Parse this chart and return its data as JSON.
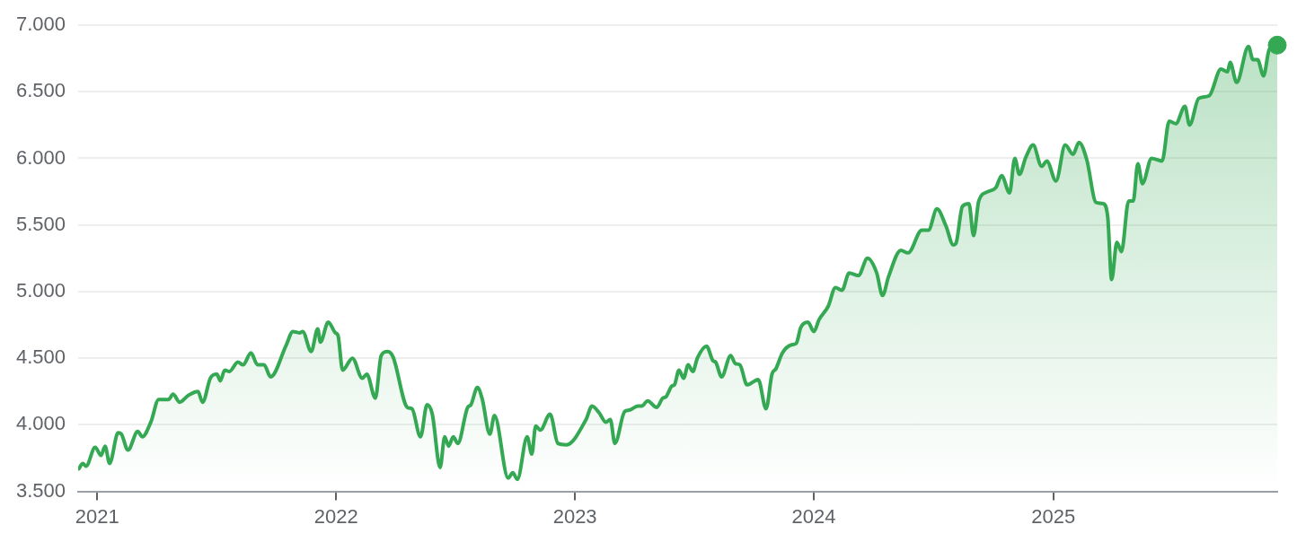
{
  "chart_data": {
    "type": "area",
    "grid": "y",
    "xlim": [
      "2020-12-03",
      "2025-12-09"
    ],
    "xticks": [
      {
        "value": "2021",
        "label": "2021"
      },
      {
        "value": "2022",
        "label": "2022"
      },
      {
        "value": "2023",
        "label": "2023"
      },
      {
        "value": "2024",
        "label": "2024"
      },
      {
        "value": "2025",
        "label": "2025"
      }
    ],
    "ylim": [
      3500,
      7000
    ],
    "yticks": [
      {
        "value": 3500,
        "label": "3.500"
      },
      {
        "value": 4000,
        "label": "4.000"
      },
      {
        "value": 4500,
        "label": "4.500"
      },
      {
        "value": 5000,
        "label": "5.000"
      },
      {
        "value": 5500,
        "label": "5.500"
      },
      {
        "value": 6000,
        "label": "6.000"
      },
      {
        "value": 6500,
        "label": "6.500"
      },
      {
        "value": 7000,
        "label": "7.000"
      }
    ],
    "series": [
      {
        "type": "area",
        "color": "#34a853",
        "x": [
          "2020-12-04",
          "2020-12-10",
          "2020-12-15",
          "2020-12-29",
          "2021-01-07",
          "2021-01-13",
          "2021-01-20",
          "2021-02-02",
          "2021-02-07",
          "2021-02-17",
          "2021-03-04",
          "2021-03-11",
          "2021-03-24",
          "2021-04-05",
          "2021-04-20",
          "2021-04-27",
          "2021-05-07",
          "2021-05-20",
          "2021-06-04",
          "2021-06-11",
          "2021-06-23",
          "2021-07-03",
          "2021-07-08",
          "2021-07-15",
          "2021-07-22",
          "2021-08-04",
          "2021-08-12",
          "2021-08-24",
          "2021-09-03",
          "2021-09-13",
          "2021-09-23",
          "2021-10-17",
          "2021-10-27",
          "2021-11-06",
          "2021-11-11",
          "2021-11-24",
          "2021-12-04",
          "2021-12-08",
          "2021-12-20",
          "2021-12-31",
          "2022-01-04",
          "2022-01-11",
          "2022-01-26",
          "2022-02-10",
          "2022-02-17",
          "2022-03-02",
          "2022-03-11",
          "2022-03-21",
          "2022-03-29",
          "2022-04-20",
          "2022-04-27",
          "2022-05-10",
          "2022-05-20",
          "2022-05-28",
          "2022-06-09",
          "2022-06-16",
          "2022-06-22",
          "2022-06-29",
          "2022-07-06",
          "2022-07-21",
          "2022-07-26",
          "2022-08-05",
          "2022-08-12",
          "2022-08-24",
          "2022-08-31",
          "2022-09-21",
          "2022-09-28",
          "2022-10-05",
          "2022-10-20",
          "2022-10-27",
          "2022-11-02",
          "2022-11-09",
          "2022-11-24",
          "2022-12-06",
          "2022-12-19",
          "2023-01-18",
          "2023-01-27",
          "2023-02-07",
          "2023-02-17",
          "2023-02-24",
          "2023-03-03",
          "2023-03-18",
          "2023-03-25",
          "2023-04-07",
          "2023-04-13",
          "2023-04-22",
          "2023-05-06",
          "2023-05-15",
          "2023-05-20",
          "2023-05-29",
          "2023-06-02",
          "2023-06-09",
          "2023-06-16",
          "2023-06-23",
          "2023-06-30",
          "2023-07-07",
          "2023-07-21",
          "2023-07-31",
          "2023-08-04",
          "2023-08-13",
          "2023-08-27",
          "2023-09-03",
          "2023-09-10",
          "2023-09-21",
          "2023-10-08",
          "2023-10-20",
          "2023-10-29",
          "2023-11-04",
          "2023-11-14",
          "2023-11-28",
          "2023-12-05",
          "2023-12-12",
          "2023-12-23",
          "2024-01-01",
          "2024-01-09",
          "2024-01-23",
          "2024-02-03",
          "2024-02-13",
          "2024-02-24",
          "2024-03-09",
          "2024-03-23",
          "2024-04-06",
          "2024-04-15",
          "2024-04-24",
          "2024-05-13",
          "2024-05-24",
          "2024-06-14",
          "2024-06-24",
          "2024-07-07",
          "2024-07-21",
          "2024-08-01",
          "2024-08-05",
          "2024-08-15",
          "2024-08-25",
          "2024-09-01",
          "2024-09-09",
          "2024-09-23",
          "2024-10-05",
          "2024-10-14",
          "2024-10-26",
          "2024-11-03",
          "2024-11-10",
          "2024-11-20",
          "2024-12-01",
          "2024-12-14",
          "2024-12-22",
          "2025-01-05",
          "2025-01-19",
          "2025-01-31",
          "2025-02-09",
          "2025-02-21",
          "2025-03-07",
          "2025-03-18",
          "2025-03-25",
          "2025-03-31",
          "2025-04-08",
          "2025-04-15",
          "2025-04-26",
          "2025-05-03",
          "2025-05-10",
          "2025-05-17",
          "2025-05-31",
          "2025-06-16",
          "2025-06-27",
          "2025-07-07",
          "2025-07-21",
          "2025-07-28",
          "2025-08-11",
          "2025-08-27",
          "2025-09-14",
          "2025-09-24",
          "2025-09-28",
          "2025-10-08",
          "2025-10-26",
          "2025-11-02",
          "2025-11-09",
          "2025-11-18",
          "2025-11-27",
          "2025-12-09"
        ],
        "values": [
          3670,
          3710,
          3690,
          3830,
          3770,
          3840,
          3710,
          3940,
          3930,
          3810,
          3950,
          3910,
          4020,
          4190,
          4190,
          4230,
          4170,
          4220,
          4250,
          4170,
          4350,
          4380,
          4330,
          4410,
          4400,
          4470,
          4450,
          4540,
          4450,
          4450,
          4360,
          4600,
          4700,
          4690,
          4700,
          4550,
          4720,
          4620,
          4770,
          4690,
          4670,
          4410,
          4500,
          4350,
          4380,
          4200,
          4520,
          4550,
          4510,
          4130,
          4120,
          3910,
          4150,
          4080,
          3680,
          3910,
          3840,
          3910,
          3860,
          4130,
          4150,
          4280,
          4200,
          3930,
          4070,
          3600,
          3640,
          3590,
          3910,
          3780,
          3990,
          3960,
          4080,
          3860,
          3850,
          4040,
          4140,
          4090,
          4020,
          4040,
          3860,
          4100,
          4110,
          4140,
          4140,
          4180,
          4130,
          4200,
          4210,
          4290,
          4300,
          4410,
          4350,
          4450,
          4400,
          4500,
          4590,
          4480,
          4470,
          4360,
          4520,
          4460,
          4450,
          4300,
          4340,
          4120,
          4380,
          4420,
          4540,
          4600,
          4610,
          4730,
          4770,
          4700,
          4790,
          4890,
          5030,
          5010,
          5140,
          5120,
          5250,
          5140,
          4970,
          5110,
          5310,
          5290,
          5460,
          5460,
          5620,
          5490,
          5350,
          5360,
          5640,
          5660,
          5420,
          5680,
          5750,
          5780,
          5870,
          5740,
          6000,
          5880,
          6010,
          6100,
          5940,
          5980,
          5830,
          6100,
          6030,
          6120,
          5990,
          5670,
          5660,
          5560,
          5090,
          5370,
          5300,
          5680,
          5680,
          5960,
          5810,
          6000,
          5980,
          6280,
          6260,
          6390,
          6250,
          6450,
          6470,
          6670,
          6650,
          6720,
          6570,
          6840,
          6740,
          6740,
          6620,
          6820,
          6850
        ]
      },
      {
        "type": "scatter",
        "color": "#34a853",
        "marker": "circle",
        "x": [
          "2025-12-09"
        ],
        "values": [
          6850
        ]
      }
    ]
  }
}
